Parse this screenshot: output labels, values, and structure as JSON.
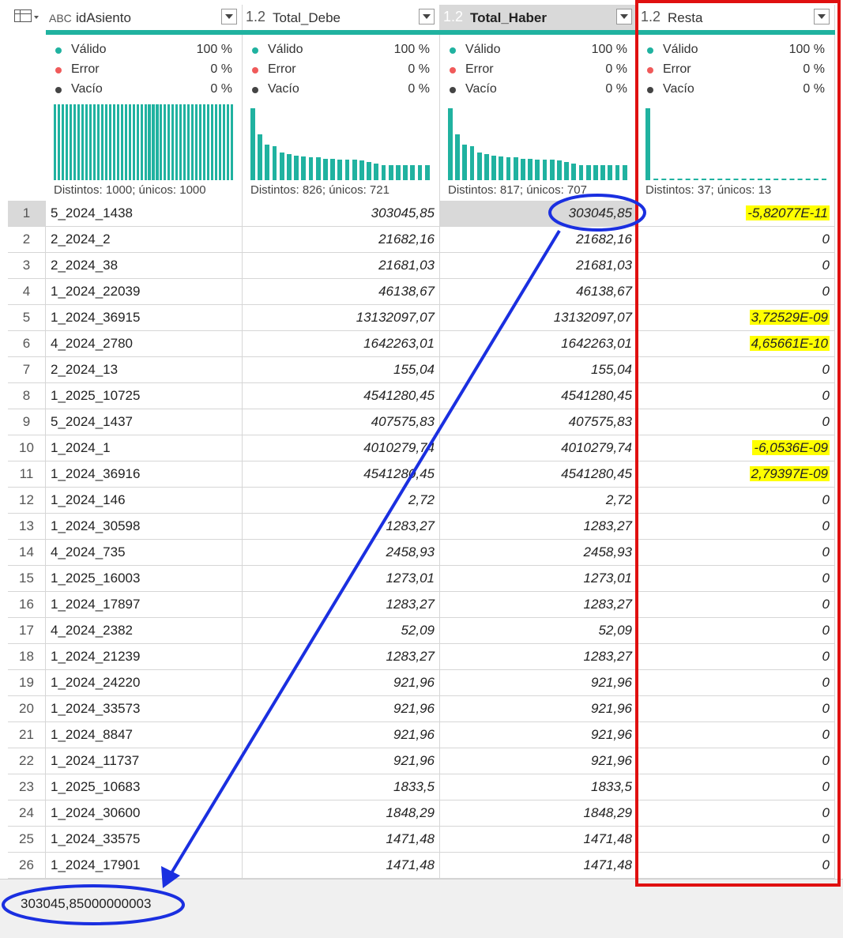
{
  "columns": [
    {
      "type": "ABC",
      "title": "idAsiento",
      "valid_label": "Válido",
      "valid_pct": "100 %",
      "error_label": "Error",
      "error_pct": "0 %",
      "empty_label": "Vacío",
      "empty_pct": "0 %",
      "distinct": "Distintos: 1000; únicos: 1000"
    },
    {
      "type": "1.2",
      "title": "Total_Debe",
      "valid_label": "Válido",
      "valid_pct": "100 %",
      "error_label": "Error",
      "error_pct": "0 %",
      "empty_label": "Vacío",
      "empty_pct": "0 %",
      "distinct": "Distintos: 826; únicos: 721"
    },
    {
      "type": "1.2",
      "title": "Total_Haber",
      "valid_label": "Válido",
      "valid_pct": "100 %",
      "error_label": "Error",
      "error_pct": "0 %",
      "empty_label": "Vacío",
      "empty_pct": "0 %",
      "distinct": "Distintos: 817; únicos: 707"
    },
    {
      "type": "1.2",
      "title": "Resta",
      "valid_label": "Válido",
      "valid_pct": "100 %",
      "error_label": "Error",
      "error_pct": "0 %",
      "empty_label": "Vacío",
      "empty_pct": "0 %",
      "distinct": "Distintos: 37; únicos: 13"
    }
  ],
  "colors": {
    "valid": "#20b2a0",
    "error": "#f05a5a",
    "empty": "#444444",
    "highlight": "#ffff00",
    "circle": "#1a2fe0",
    "box": "#e01010"
  },
  "rows": [
    {
      "n": "1",
      "id": "5_2024_1438",
      "debe": "303045,85",
      "haber": "303045,85",
      "resta": "-5,82077E-11",
      "hl": true
    },
    {
      "n": "2",
      "id": "2_2024_2",
      "debe": "21682,16",
      "haber": "21682,16",
      "resta": "0",
      "hl": false
    },
    {
      "n": "3",
      "id": "2_2024_38",
      "debe": "21681,03",
      "haber": "21681,03",
      "resta": "0",
      "hl": false
    },
    {
      "n": "4",
      "id": "1_2024_22039",
      "debe": "46138,67",
      "haber": "46138,67",
      "resta": "0",
      "hl": false
    },
    {
      "n": "5",
      "id": "1_2024_36915",
      "debe": "13132097,07",
      "haber": "13132097,07",
      "resta": "3,72529E-09",
      "hl": true
    },
    {
      "n": "6",
      "id": "4_2024_2780",
      "debe": "1642263,01",
      "haber": "1642263,01",
      "resta": "4,65661E-10",
      "hl": true
    },
    {
      "n": "7",
      "id": "2_2024_13",
      "debe": "155,04",
      "haber": "155,04",
      "resta": "0",
      "hl": false
    },
    {
      "n": "8",
      "id": "1_2025_10725",
      "debe": "4541280,45",
      "haber": "4541280,45",
      "resta": "0",
      "hl": false
    },
    {
      "n": "9",
      "id": "5_2024_1437",
      "debe": "407575,83",
      "haber": "407575,83",
      "resta": "0",
      "hl": false
    },
    {
      "n": "10",
      "id": "1_2024_1",
      "debe": "4010279,74",
      "haber": "4010279,74",
      "resta": "-6,0536E-09",
      "hl": true
    },
    {
      "n": "11",
      "id": "1_2024_36916",
      "debe": "4541280,45",
      "haber": "4541280,45",
      "resta": "2,79397E-09",
      "hl": true
    },
    {
      "n": "12",
      "id": "1_2024_146",
      "debe": "2,72",
      "haber": "2,72",
      "resta": "0",
      "hl": false
    },
    {
      "n": "13",
      "id": "1_2024_30598",
      "debe": "1283,27",
      "haber": "1283,27",
      "resta": "0",
      "hl": false
    },
    {
      "n": "14",
      "id": "4_2024_735",
      "debe": "2458,93",
      "haber": "2458,93",
      "resta": "0",
      "hl": false
    },
    {
      "n": "15",
      "id": "1_2025_16003",
      "debe": "1273,01",
      "haber": "1273,01",
      "resta": "0",
      "hl": false
    },
    {
      "n": "16",
      "id": "1_2024_17897",
      "debe": "1283,27",
      "haber": "1283,27",
      "resta": "0",
      "hl": false
    },
    {
      "n": "17",
      "id": "4_2024_2382",
      "debe": "52,09",
      "haber": "52,09",
      "resta": "0",
      "hl": false
    },
    {
      "n": "18",
      "id": "1_2024_21239",
      "debe": "1283,27",
      "haber": "1283,27",
      "resta": "0",
      "hl": false
    },
    {
      "n": "19",
      "id": "1_2024_24220",
      "debe": "921,96",
      "haber": "921,96",
      "resta": "0",
      "hl": false
    },
    {
      "n": "20",
      "id": "1_2024_33573",
      "debe": "921,96",
      "haber": "921,96",
      "resta": "0",
      "hl": false
    },
    {
      "n": "21",
      "id": "1_2024_8847",
      "debe": "921,96",
      "haber": "921,96",
      "resta": "0",
      "hl": false
    },
    {
      "n": "22",
      "id": "1_2024_11737",
      "debe": "921,96",
      "haber": "921,96",
      "resta": "0",
      "hl": false
    },
    {
      "n": "23",
      "id": "1_2025_10683",
      "debe": "1833,5",
      "haber": "1833,5",
      "resta": "0",
      "hl": false
    },
    {
      "n": "24",
      "id": "1_2024_30600",
      "debe": "1848,29",
      "haber": "1848,29",
      "resta": "0",
      "hl": false
    },
    {
      "n": "25",
      "id": "1_2024_33575",
      "debe": "1471,48",
      "haber": "1471,48",
      "resta": "0",
      "hl": false
    },
    {
      "n": "26",
      "id": "1_2024_17901",
      "debe": "1471,48",
      "haber": "1471,48",
      "resta": "0",
      "hl": false
    }
  ],
  "histograms": {
    "idAsiento": [
      1,
      1,
      1,
      1,
      1,
      1,
      1,
      1,
      1,
      1,
      1,
      1,
      1,
      1,
      1,
      1,
      1,
      1,
      1,
      1,
      1,
      1,
      1,
      1,
      1,
      1,
      1,
      1,
      1,
      1,
      1,
      1,
      1,
      1,
      1,
      1,
      1,
      1,
      1,
      1,
      1,
      1,
      1,
      1,
      1,
      1
    ],
    "Total_Debe": [
      0.95,
      0.6,
      0.47,
      0.45,
      0.36,
      0.34,
      0.32,
      0.31,
      0.3,
      0.3,
      0.28,
      0.28,
      0.27,
      0.27,
      0.27,
      0.26,
      0.24,
      0.22,
      0.2,
      0.2,
      0.2,
      0.2,
      0.2,
      0.2,
      0.2
    ],
    "Total_Haber": [
      0.95,
      0.6,
      0.47,
      0.45,
      0.36,
      0.34,
      0.32,
      0.31,
      0.3,
      0.3,
      0.28,
      0.28,
      0.27,
      0.27,
      0.27,
      0.26,
      0.24,
      0.22,
      0.2,
      0.2,
      0.2,
      0.2,
      0.2,
      0.2,
      0.2
    ],
    "Resta": [
      0.95,
      0.03,
      0.03,
      0.03,
      0.03,
      0.03,
      0.03
    ]
  },
  "status": {
    "value": "303045,85000000003"
  }
}
